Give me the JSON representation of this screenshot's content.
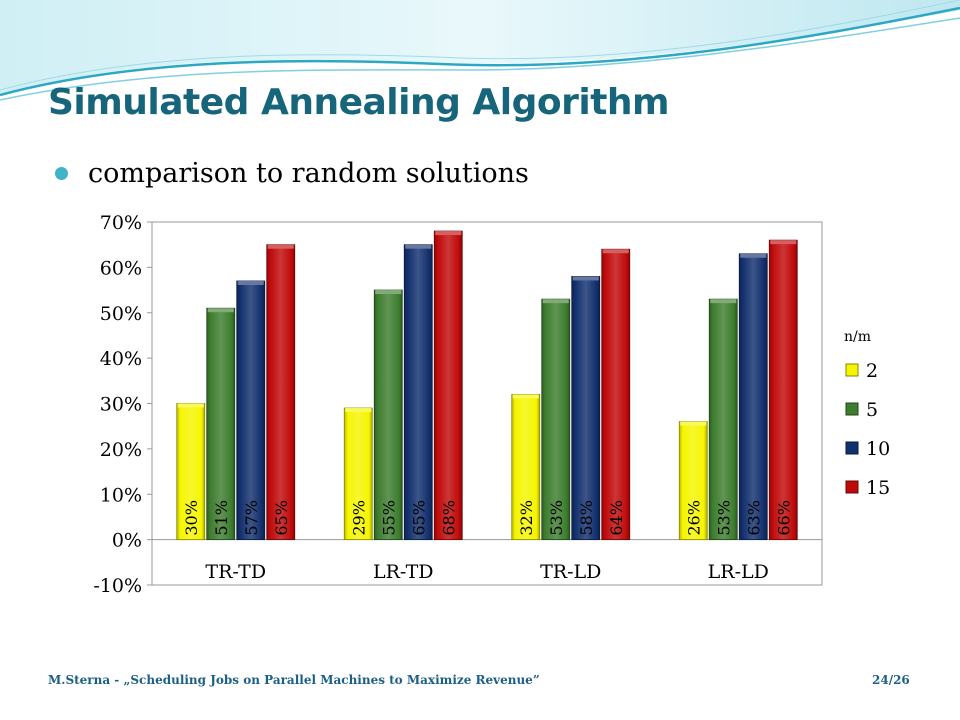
{
  "slide": {
    "title": "Simulated Annealing Algorithm",
    "bullet": "comparison to random solutions",
    "footer": "M.Sterna - „Scheduling Jobs on Parallel Machines to Maximize Revenue”",
    "page": "24/26"
  },
  "colors": {
    "title": "#17657a",
    "bullet": "#3fb4c9",
    "footer": "#1b5f86"
  },
  "chart_data": {
    "type": "bar",
    "categories": [
      "TR-TD",
      "LR-TD",
      "TR-LD",
      "LR-LD"
    ],
    "series": [
      {
        "name": "2",
        "values": [
          30,
          29,
          32,
          26
        ],
        "labels": [
          "30%",
          "29%",
          "32%",
          "26%"
        ],
        "color": "#f5f500"
      },
      {
        "name": "5",
        "values": [
          51,
          55,
          53,
          53
        ],
        "labels": [
          "51%",
          "55%",
          "53%",
          "53%"
        ],
        "color": "#3d7d2e"
      },
      {
        "name": "10",
        "values": [
          57,
          65,
          58,
          63
        ],
        "labels": [
          "57%",
          "65%",
          "58%",
          "63%"
        ],
        "color": "#13306e"
      },
      {
        "name": "15",
        "values": [
          65,
          68,
          64,
          66
        ],
        "labels": [
          "65%",
          "68%",
          "64%",
          "66%"
        ],
        "color": "#c00a0a"
      }
    ],
    "legend_title": "n/m",
    "legend_position": "right",
    "ylim": [
      -10,
      70
    ],
    "yticks": [
      -10,
      0,
      10,
      20,
      30,
      40,
      50,
      60,
      70
    ],
    "ytick_labels": [
      "-10%",
      "0%",
      "10%",
      "20%",
      "30%",
      "40%",
      "50%",
      "60%",
      "70%"
    ],
    "grid": false
  }
}
